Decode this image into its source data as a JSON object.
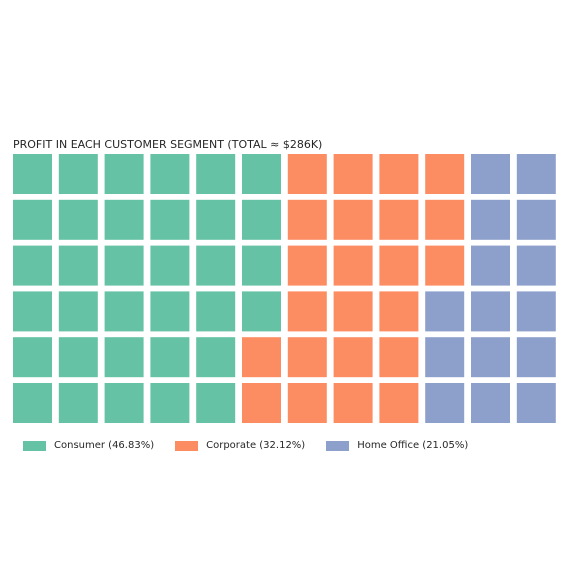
{
  "chart_data": {
    "type": "waffle",
    "title": "PROFIT IN EACH CUSTOMER SEGMENT (TOTAL ≈ $286K)",
    "rows": 6,
    "columns": 12,
    "categories": [
      "Consumer",
      "Corporate",
      "Home Office"
    ],
    "percentages": [
      46.83,
      32.12,
      21.05
    ],
    "block_counts": [
      34,
      23,
      15
    ],
    "colors": [
      "#66c2a5",
      "#fc8d62",
      "#8da0cb"
    ],
    "legend_labels": [
      "Consumer (46.83%)",
      "Corporate (32.12%)",
      "Home Office (21.05%)"
    ],
    "legend_placement": "bottom-left"
  }
}
